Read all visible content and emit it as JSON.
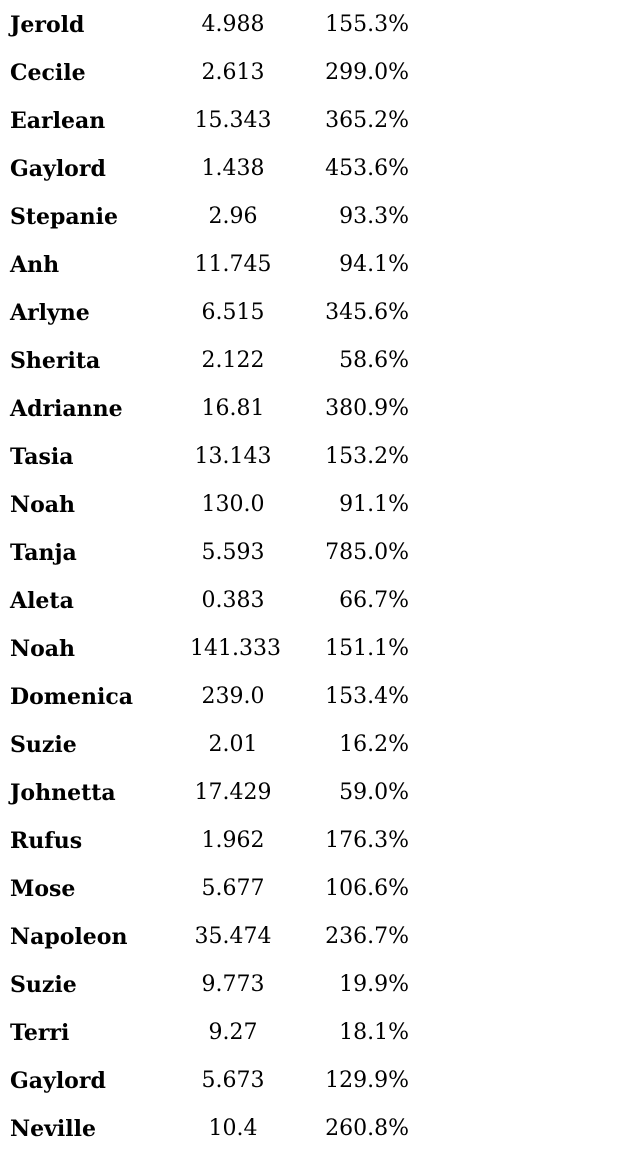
{
  "rows": [
    {
      "name": "Jerold",
      "value": "4.988",
      "percent": "155.3%"
    },
    {
      "name": "Cecile",
      "value": "2.613",
      "percent": "299.0%"
    },
    {
      "name": "Earlean",
      "value": "15.343",
      "percent": "365.2%"
    },
    {
      "name": "Gaylord",
      "value": "1.438",
      "percent": "453.6%"
    },
    {
      "name": "Stepanie",
      "value": "2.96",
      "percent": "93.3%"
    },
    {
      "name": "Anh",
      "value": "11.745",
      "percent": "94.1%"
    },
    {
      "name": "Arlyne",
      "value": "6.515",
      "percent": "345.6%"
    },
    {
      "name": "Sherita",
      "value": "2.122",
      "percent": "58.6%"
    },
    {
      "name": "Adrianne",
      "value": "16.81",
      "percent": "380.9%"
    },
    {
      "name": "Tasia",
      "value": "13.143",
      "percent": "153.2%"
    },
    {
      "name": "Noah",
      "value": "130.0",
      "percent": "91.1%"
    },
    {
      "name": "Tanja",
      "value": "5.593",
      "percent": "785.0%"
    },
    {
      "name": "Aleta",
      "value": "0.383",
      "percent": "66.7%"
    },
    {
      "name": "Noah",
      "value": "141.333",
      "percent": "151.1%"
    },
    {
      "name": "Domenica",
      "value": "239.0",
      "percent": "153.4%"
    },
    {
      "name": "Suzie",
      "value": "2.01",
      "percent": "16.2%"
    },
    {
      "name": "Johnetta",
      "value": "17.429",
      "percent": "59.0%"
    },
    {
      "name": "Rufus",
      "value": "1.962",
      "percent": "176.3%"
    },
    {
      "name": "Mose",
      "value": "5.677",
      "percent": "106.6%"
    },
    {
      "name": "Napoleon",
      "value": "35.474",
      "percent": "236.7%"
    },
    {
      "name": "Suzie",
      "value": "9.773",
      "percent": "19.9%"
    },
    {
      "name": "Terri",
      "value": "9.27",
      "percent": "18.1%"
    },
    {
      "name": "Gaylord",
      "value": "5.673",
      "percent": "129.9%"
    },
    {
      "name": "Neville",
      "value": "10.4",
      "percent": "260.8%"
    }
  ]
}
